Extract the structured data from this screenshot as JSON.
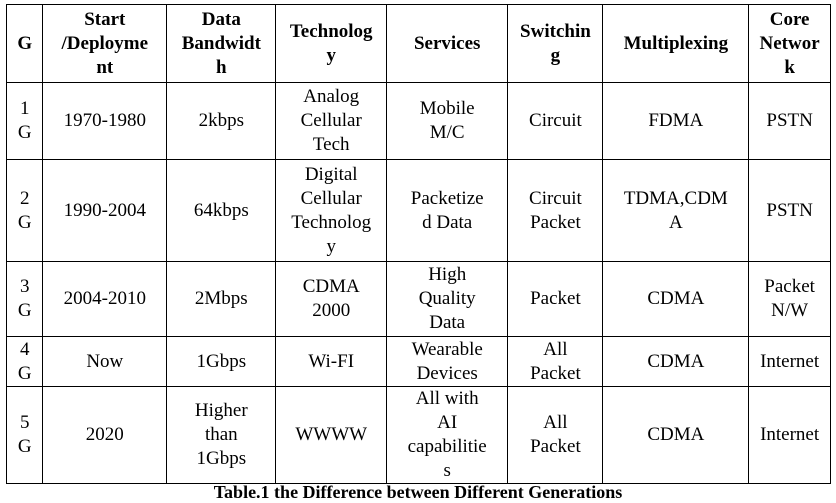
{
  "table": {
    "headers": [
      {
        "key": "g",
        "label": "G"
      },
      {
        "key": "start",
        "label": "Start\n/Deployme\nnt"
      },
      {
        "key": "bandwidth",
        "label": "Data\nBandwidt\nh"
      },
      {
        "key": "technology",
        "label": "Technolog\ny"
      },
      {
        "key": "services",
        "label": "Services"
      },
      {
        "key": "switching",
        "label": "Switchin\ng"
      },
      {
        "key": "multiplexing",
        "label": "Multiplexing"
      },
      {
        "key": "core",
        "label": "Core\nNetwor\nk"
      }
    ],
    "rows": [
      {
        "g": "1\nG",
        "start": "1970-1980",
        "bandwidth": "2kbps",
        "technology": "Analog\nCellular\nTech",
        "services": "Mobile\nM/C",
        "switching": "Circuit",
        "multiplexing": "FDMA",
        "core": "PSTN"
      },
      {
        "g": "2\nG",
        "start": "1990-2004",
        "bandwidth": "64kbps",
        "technology": "Digital\nCellular\nTechnolog\ny",
        "services": "Packetize\nd Data",
        "switching": "Circuit\nPacket",
        "multiplexing": "TDMA,CDM\nA",
        "core": "PSTN"
      },
      {
        "g": "3\nG",
        "start": "2004-2010",
        "bandwidth": "2Mbps",
        "technology": "CDMA\n2000",
        "services": "High\nQuality\nData",
        "switching": "Packet",
        "multiplexing": "CDMA",
        "core": "Packet\nN/W"
      },
      {
        "g": "4\nG",
        "start": "Now",
        "bandwidth": "1Gbps",
        "technology": "Wi-FI",
        "services": "Wearable\nDevices",
        "switching": "All\nPacket",
        "multiplexing": "CDMA",
        "core": "Internet"
      },
      {
        "g": "5\nG",
        "start": "2020",
        "bandwidth": "Higher\nthan\n1Gbps",
        "technology": "WWWW",
        "services": "All with\nAI\ncapabilitie\ns",
        "switching": "All\nPacket",
        "multiplexing": "CDMA",
        "core": "Internet"
      }
    ]
  },
  "caption": "Table.1 the Difference between Different Generations"
}
